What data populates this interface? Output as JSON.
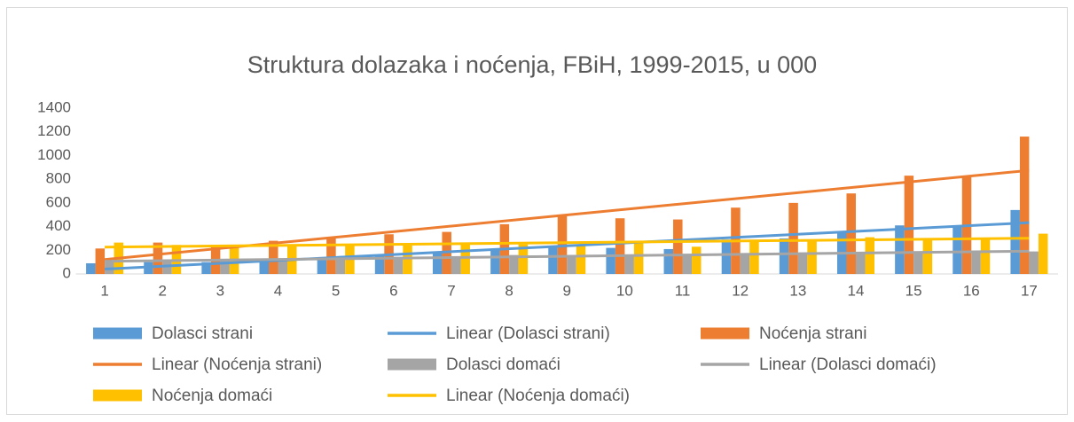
{
  "chart_data": {
    "type": "bar",
    "title": "Struktura dolazaka i noćenja, FBiH, 1999-2015, u 000",
    "categories": [
      "1",
      "2",
      "3",
      "4",
      "5",
      "6",
      "7",
      "8",
      "9",
      "10",
      "11",
      "12",
      "13",
      "14",
      "15",
      "16",
      "17"
    ],
    "series": [
      {
        "name": "Dolasci strani",
        "color": "#5b9bd5",
        "values": [
          90,
          100,
          100,
          110,
          130,
          150,
          180,
          210,
          230,
          220,
          210,
          290,
          300,
          350,
          410,
          410,
          540
        ],
        "trendline": {
          "name": "Linear (Dolasci strani)",
          "type": "linear",
          "color": "#5b9bd5"
        }
      },
      {
        "name": "Noćenja strani",
        "color": "#ed7d31",
        "values": [
          215,
          265,
          230,
          280,
          300,
          335,
          355,
          420,
          490,
          470,
          460,
          560,
          600,
          680,
          830,
          820,
          1160
        ],
        "trendline": {
          "name": "Linear (Noćenja strani)",
          "type": "linear",
          "color": "#ed7d31"
        }
      },
      {
        "name": "Dolasci domaći",
        "color": "#a5a5a5",
        "values": [
          100,
          105,
          110,
          120,
          130,
          140,
          150,
          160,
          160,
          150,
          150,
          170,
          170,
          175,
          180,
          180,
          190
        ],
        "trendline": {
          "name": "Linear (Dolasci domaći)",
          "type": "linear",
          "color": "#a5a5a5"
        }
      },
      {
        "name": "Noćenja domaći",
        "color": "#ffc000",
        "values": [
          265,
          245,
          230,
          240,
          240,
          240,
          250,
          250,
          240,
          270,
          230,
          270,
          280,
          310,
          300,
          290,
          340
        ],
        "trendline": {
          "name": "Linear (Noćenja domaći)",
          "type": "linear",
          "color": "#ffc000"
        }
      }
    ],
    "ylim": [
      0,
      1400
    ],
    "yticks": [
      0,
      200,
      400,
      600,
      800,
      1000,
      1200,
      1400
    ],
    "grid": false,
    "legend": "bottom"
  }
}
